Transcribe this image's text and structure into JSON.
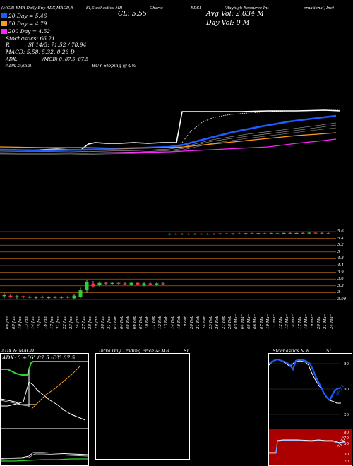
{
  "header": {
    "line1_left": "(MGB) EMA Daily Buy ADX,MACD,R",
    "line1_mid": "SI,Stochastics MR",
    "line1_charts": "Charts",
    "line1_symbol": "RDSI",
    "line1_right_a": "(Rayhigh Resource Int",
    "line1_right_b": "ernational, Inc)",
    "ema20": "20 Day = 5.46",
    "ema50": "50 Day = 4.79",
    "ema200": "200 Day = 4.52",
    "stochastics": "Stochastics: 66.21",
    "rsi": "R           SI 14/5: 71.52 / 78.94",
    "macd": "MACD: 5.58, 5.32, 0.26  D",
    "close": "CL: 5.55",
    "avg_vol": "Avg Vol: 2.034  M",
    "day_vol": "Day Vol: 0   M",
    "adx": "ADX:",
    "adx_mgb": "(MGB) 0, 87.5,  87.5",
    "adx_signal": "ADX  signal:",
    "signal": "BUY Sloping @ 0%"
  },
  "colors": {
    "ema20": "#1e5cff",
    "ema50": "#ff9a1a",
    "ema200": "#ff22ff",
    "up": "#2fd12f",
    "down": "#ff3333",
    "grid": "#c9731a"
  },
  "price_axis": [
    "5.6",
    "5.4",
    "5.2",
    "5",
    "4.8",
    "4.4",
    "3.9",
    "3.6",
    "3.3",
    "3",
    "3.00"
  ],
  "dates": [
    "08 Jan",
    "09 Jan",
    "10 Jan",
    "13 Jan",
    "14 Jan",
    "15 Jan",
    "16 Jan",
    "17 Jan",
    "21 Jan",
    "22 Jan",
    "23 Jan",
    "24 Jan",
    "27 Jan",
    "28 Jan",
    "29 Jan",
    "30 Jan",
    "31 Jan",
    "03 Feb",
    "04 Feb",
    "05 Feb",
    "06 Feb",
    "07 Feb",
    "10 Feb",
    "11 Feb",
    "12 Feb",
    "13 Feb",
    "14 Feb",
    "18 Feb",
    "19 Feb",
    "20 Feb",
    "21 Feb",
    "24 Feb",
    "25 Feb",
    "26 Feb",
    "27 Feb",
    "28 Feb",
    "03 Mar",
    "04 Mar",
    "05 Mar",
    "06 Mar",
    "07 Mar",
    "10 Mar",
    "11 Mar",
    "12 Mar",
    "13 Mar",
    "14 Mar",
    "17 Mar",
    "18 Mar",
    "19 Mar",
    "20 Mar",
    "21 Mar",
    "24 Mar"
  ],
  "chart_data": {
    "type": "candlestick",
    "ylim": [
      2.95,
      5.7
    ],
    "candles": [
      {
        "o": 3.18,
        "h": 3.3,
        "l": 3.1,
        "c": 3.22
      },
      {
        "o": 3.2,
        "h": 3.25,
        "l": 3.1,
        "c": 3.15
      },
      {
        "o": 3.15,
        "h": 3.22,
        "l": 3.08,
        "c": 3.18
      },
      {
        "o": 3.18,
        "h": 3.2,
        "l": 3.1,
        "c": 3.15
      },
      {
        "o": 3.15,
        "h": 3.2,
        "l": 3.1,
        "c": 3.12
      },
      {
        "o": 3.12,
        "h": 3.18,
        "l": 3.08,
        "c": 3.15
      },
      {
        "o": 3.15,
        "h": 3.2,
        "l": 3.1,
        "c": 3.12
      },
      {
        "o": 3.12,
        "h": 3.18,
        "l": 3.08,
        "c": 3.14
      },
      {
        "o": 3.14,
        "h": 3.18,
        "l": 3.1,
        "c": 3.12
      },
      {
        "o": 3.12,
        "h": 3.18,
        "l": 3.08,
        "c": 3.15
      },
      {
        "o": 3.15,
        "h": 3.2,
        "l": 3.1,
        "c": 3.12
      },
      {
        "o": 3.1,
        "h": 3.25,
        "l": 3.05,
        "c": 3.2
      },
      {
        "o": 3.15,
        "h": 3.5,
        "l": 3.1,
        "c": 3.4
      },
      {
        "o": 3.4,
        "h": 3.8,
        "l": 3.3,
        "c": 3.7
      },
      {
        "o": 3.65,
        "h": 3.75,
        "l": 3.5,
        "c": 3.55
      },
      {
        "o": 3.6,
        "h": 3.7,
        "l": 3.55,
        "c": 3.68
      },
      {
        "o": 3.68,
        "h": 3.72,
        "l": 3.6,
        "c": 3.65
      },
      {
        "o": 3.65,
        "h": 3.7,
        "l": 3.6,
        "c": 3.68
      },
      {
        "o": 3.68,
        "h": 3.72,
        "l": 3.62,
        "c": 3.66
      },
      {
        "o": 3.66,
        "h": 3.7,
        "l": 3.6,
        "c": 3.64
      },
      {
        "o": 3.62,
        "h": 3.7,
        "l": 3.58,
        "c": 3.68
      },
      {
        "o": 3.68,
        "h": 3.72,
        "l": 3.6,
        "c": 3.62
      },
      {
        "o": 3.6,
        "h": 3.7,
        "l": 3.55,
        "c": 3.66
      },
      {
        "o": 3.66,
        "h": 3.7,
        "l": 3.6,
        "c": 3.62
      },
      {
        "o": 3.62,
        "h": 3.7,
        "l": 3.58,
        "c": 3.66
      },
      {
        "o": 3.66,
        "h": 3.72,
        "l": 3.6,
        "c": 3.64
      },
      {
        "o": 5.52,
        "h": 5.56,
        "l": 5.48,
        "c": 5.54
      },
      {
        "o": 5.54,
        "h": 5.56,
        "l": 5.5,
        "c": 5.52
      },
      {
        "o": 5.52,
        "h": 5.56,
        "l": 5.5,
        "c": 5.54
      },
      {
        "o": 5.54,
        "h": 5.56,
        "l": 5.5,
        "c": 5.52
      },
      {
        "o": 5.52,
        "h": 5.56,
        "l": 5.5,
        "c": 5.54
      },
      {
        "o": 5.54,
        "h": 5.56,
        "l": 5.5,
        "c": 5.52
      },
      {
        "o": 5.52,
        "h": 5.56,
        "l": 5.5,
        "c": 5.54
      },
      {
        "o": 5.54,
        "h": 5.56,
        "l": 5.5,
        "c": 5.53
      },
      {
        "o": 5.53,
        "h": 5.56,
        "l": 5.5,
        "c": 5.55
      },
      {
        "o": 5.55,
        "h": 5.57,
        "l": 5.52,
        "c": 5.53
      },
      {
        "o": 5.53,
        "h": 5.56,
        "l": 5.5,
        "c": 5.55
      },
      {
        "o": 5.55,
        "h": 5.58,
        "l": 5.52,
        "c": 5.54
      },
      {
        "o": 5.54,
        "h": 5.57,
        "l": 5.5,
        "c": 5.56
      },
      {
        "o": 5.56,
        "h": 5.58,
        "l": 5.52,
        "c": 5.54
      },
      {
        "o": 5.54,
        "h": 5.57,
        "l": 5.5,
        "c": 5.56
      },
      {
        "o": 5.56,
        "h": 5.58,
        "l": 5.52,
        "c": 5.55
      },
      {
        "o": 5.55,
        "h": 5.58,
        "l": 5.52,
        "c": 5.56
      },
      {
        "o": 5.56,
        "h": 5.58,
        "l": 5.53,
        "c": 5.55
      },
      {
        "o": 5.55,
        "h": 5.58,
        "l": 5.52,
        "c": 5.57
      },
      {
        "o": 5.57,
        "h": 5.6,
        "l": 5.54,
        "c": 5.55
      },
      {
        "o": 5.55,
        "h": 5.58,
        "l": 5.52,
        "c": 5.57
      },
      {
        "o": 5.57,
        "h": 5.6,
        "l": 5.54,
        "c": 5.56
      },
      {
        "o": 5.56,
        "h": 5.6,
        "l": 5.53,
        "c": 5.58
      },
      {
        "o": 5.58,
        "h": 5.62,
        "l": 5.55,
        "c": 5.57
      },
      {
        "o": 5.57,
        "h": 5.6,
        "l": 5.54,
        "c": 5.56
      },
      {
        "o": 5.56,
        "h": 5.6,
        "l": 5.53,
        "c": 5.55
      }
    ]
  },
  "panels": {
    "adx_title": "ADX  & MACD",
    "adx_values": "ADX: 0  +DY: 87.5  -DY: 87.5",
    "intraday_title": "Intra  Day Trading Price  & MR",
    "intraday_si": "SI",
    "stoch_title": "Stochastics & R",
    "stoch_si": "SI",
    "stoch_levels": [
      "80",
      "50",
      "20"
    ],
    "stoch_value": "66.21",
    "rsi_levels": [
      "80",
      "70",
      "50",
      "30",
      "20"
    ],
    "rsi_value": "71.52"
  }
}
